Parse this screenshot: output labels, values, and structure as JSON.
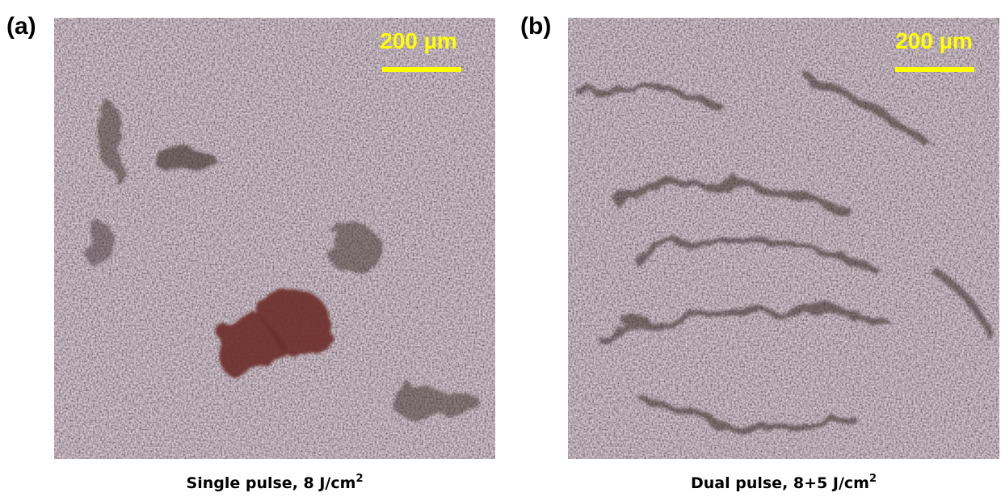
{
  "panels": [
    {
      "label": "(a)",
      "scale_bar": "200 µm",
      "caption": {
        "text": "Single pulse, 8 J/cm",
        "superscript": "2"
      }
    },
    {
      "label": "(b)",
      "scale_bar": "200 µm",
      "caption": {
        "text": "Dual pulse, 8+5 J/cm",
        "superscript": "2"
      }
    }
  ]
}
